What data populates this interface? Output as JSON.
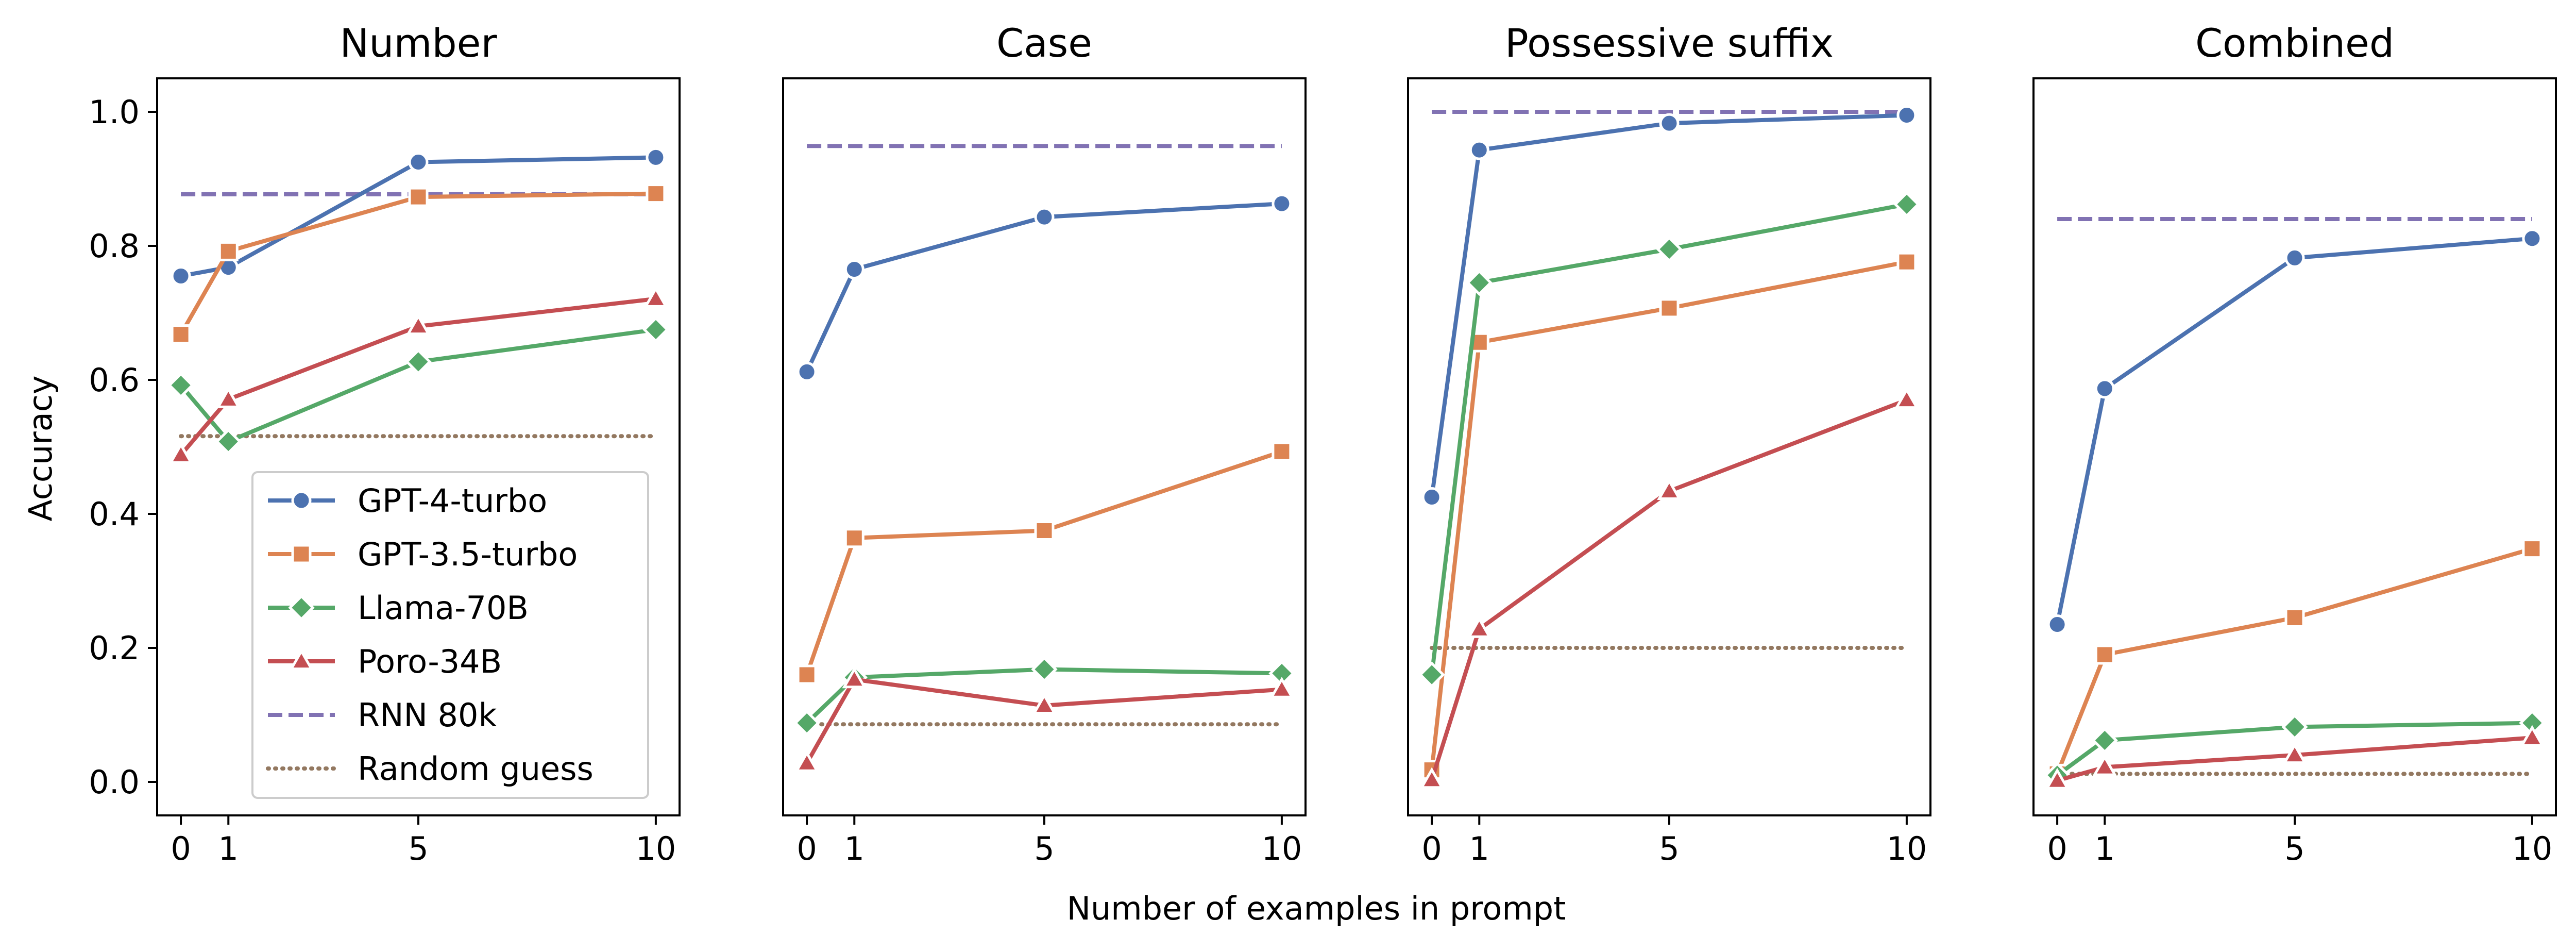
{
  "chart_data": {
    "type": "line",
    "ylabel": "Accuracy",
    "xlabel": "Number of examples in prompt",
    "x": [
      0,
      1,
      5,
      10
    ],
    "ylim": [
      -0.05,
      1.05
    ],
    "yticks": [
      0.0,
      0.2,
      0.4,
      0.6,
      0.8,
      1.0
    ],
    "xticks": [
      0,
      1,
      5,
      10
    ],
    "legend": {
      "placement": "lower-right",
      "panel": "Number"
    },
    "colors": {
      "GPT-4-turbo": "#4c72b0",
      "GPT-3.5-turbo": "#dd8452",
      "Llama-70B": "#55a868",
      "Poro-34B": "#c44e52",
      "RNN 80k": "#8172b3",
      "Random guess": "#937860"
    },
    "panels": [
      {
        "title": "Number",
        "series": [
          {
            "name": "GPT-4-turbo",
            "values": [
              0.755,
              0.768,
              0.925,
              0.932
            ]
          },
          {
            "name": "GPT-3.5-turbo",
            "values": [
              0.668,
              0.792,
              0.873,
              0.878
            ]
          },
          {
            "name": "Llama-70B",
            "values": [
              0.592,
              0.508,
              0.627,
              0.675
            ]
          },
          {
            "name": "Poro-34B",
            "values": [
              0.488,
              0.571,
              0.68,
              0.721
            ]
          }
        ],
        "rnn": 0.877,
        "random": 0.516
      },
      {
        "title": "Case",
        "series": [
          {
            "name": "GPT-4-turbo",
            "values": [
              0.612,
              0.765,
              0.843,
              0.863
            ]
          },
          {
            "name": "GPT-3.5-turbo",
            "values": [
              0.16,
              0.364,
              0.375,
              0.493
            ]
          },
          {
            "name": "Llama-70B",
            "values": [
              0.088,
              0.156,
              0.168,
              0.162
            ]
          },
          {
            "name": "Poro-34B",
            "values": [
              0.028,
              0.153,
              0.114,
              0.138
            ]
          }
        ],
        "rnn": 0.949,
        "random": 0.086
      },
      {
        "title": "Possessive suffix",
        "series": [
          {
            "name": "GPT-4-turbo",
            "values": [
              0.425,
              0.943,
              0.983,
              0.995
            ]
          },
          {
            "name": "GPT-3.5-turbo",
            "values": [
              0.018,
              0.656,
              0.707,
              0.776
            ]
          },
          {
            "name": "Llama-70B",
            "values": [
              0.16,
              0.745,
              0.795,
              0.862
            ]
          },
          {
            "name": "Poro-34B",
            "values": [
              0.003,
              0.228,
              0.434,
              0.57
            ]
          }
        ],
        "rnn": 1.0,
        "random": 0.2
      },
      {
        "title": "Combined",
        "series": [
          {
            "name": "GPT-4-turbo",
            "values": [
              0.235,
              0.587,
              0.782,
              0.811
            ]
          },
          {
            "name": "GPT-3.5-turbo",
            "values": [
              0.012,
              0.19,
              0.245,
              0.348
            ]
          },
          {
            "name": "Llama-70B",
            "values": [
              0.01,
              0.062,
              0.082,
              0.088
            ]
          },
          {
            "name": "Poro-34B",
            "values": [
              0.002,
              0.022,
              0.04,
              0.066
            ]
          }
        ],
        "rnn": 0.84,
        "random": 0.012
      }
    ]
  }
}
